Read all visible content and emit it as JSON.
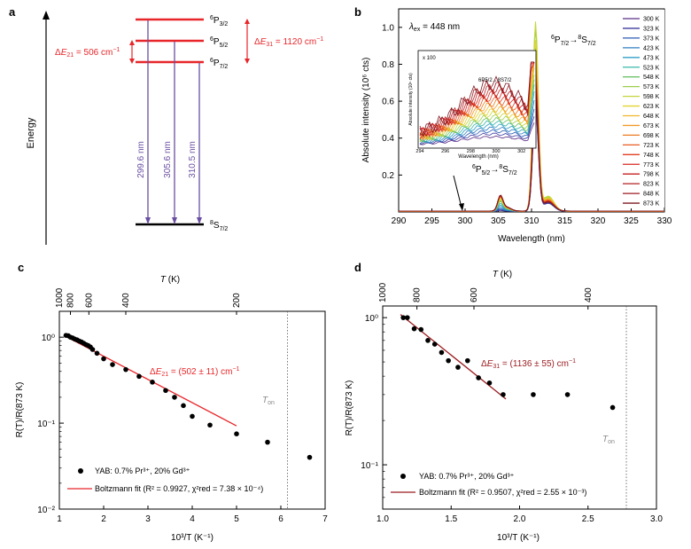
{
  "panels": {
    "a": {
      "label": "a",
      "energy_label": "Energy",
      "levels": [
        {
          "name": "P32",
          "sym": "6P3/2"
        },
        {
          "name": "P52",
          "sym": "6P5/2"
        },
        {
          "name": "P72",
          "sym": "6P7/2"
        },
        {
          "name": "S72",
          "sym": "8S7/2"
        }
      ],
      "dE21_text": "ΔE21 = 506 cm⁻¹",
      "dE31_text": "ΔE31 = 1120 cm⁻¹",
      "transitions": [
        "299.6 nm",
        "305.6 nm",
        "310.5 nm"
      ],
      "color_levels": "#e8262a",
      "color_transitions": "#6a4ea3"
    },
    "b": {
      "label": "b",
      "excitation": "λex = 448 nm",
      "main_transition": "6P7/2→8S7/2",
      "second_transition": "6P5/2→8S7/2",
      "ylabel": "Absolute intensity (10⁶ cts)",
      "xlabel": "Wavelength (nm)",
      "x_ticks": [
        "290",
        "295",
        "300",
        "305",
        "310",
        "315",
        "320",
        "325",
        "330"
      ],
      "y_ticks": [
        "0.2",
        "0.4",
        "0.6",
        "0.8",
        "1.0"
      ],
      "inset_scale": "x 100",
      "inset_xlabel": "Wavelength (nm)",
      "inset_ylabel": "Absolute intensity (10⁶ cts)",
      "inset_transition": "6P5/2→8S7/2",
      "inset_x_ticks": [
        "294",
        "296",
        "298",
        "300",
        "302"
      ]
    },
    "c": {
      "label": "c",
      "top_axis_label": "T (K)",
      "top_ticks": [
        "1000",
        "800",
        "600",
        "400",
        "200"
      ],
      "ylabel": "R(T)/R(873 K)",
      "xlabel": "10³/T (K⁻¹)",
      "x_ticks": [
        "1",
        "2",
        "3",
        "4",
        "5",
        "6",
        "7"
      ],
      "y_ticks": [
        "10⁰",
        "10⁻¹",
        "10⁻²"
      ],
      "fit_text": "ΔE21 = (502 ± 11) cm⁻¹",
      "ton_label": "Ton",
      "legend_points": "YAB: 0.7% Pr³⁺, 20% Gd³⁺",
      "legend_fit": "Boltzmann fit (R² = 0.9927, χ²red = 7.38 × 10⁻⁴)"
    },
    "d": {
      "label": "d",
      "top_axis_label": "T (K)",
      "top_ticks": [
        "1000",
        "800",
        "600",
        "400"
      ],
      "ylabel": "R(T)/R(873 K)",
      "xlabel": "10³/T (K⁻¹)",
      "x_ticks": [
        "1.0",
        "1.5",
        "2.0",
        "2.5",
        "3.0"
      ],
      "y_ticks": [
        "10⁰",
        "10⁻¹"
      ],
      "fit_text": "ΔE31 = (1136 ± 55) cm⁻¹",
      "ton_label": "Ton",
      "legend_points": "YAB: 0.7% Pr³⁺, 20% Gd³⁺",
      "legend_fit": "Boltzmann fit (R² = 0.9507, χ²red = 2.55 × 10⁻³)"
    }
  },
  "chart_data": [
    {
      "type": "line",
      "panel": "b",
      "xlabel": "Wavelength (nm)",
      "ylabel": "Absolute intensity (10⁶ cts)",
      "xlim": [
        290,
        330
      ],
      "ylim": [
        0,
        1.1
      ],
      "legend_position": "right",
      "series": [
        {
          "name": "300 K",
          "color": "#5b2d86",
          "peak310": 0.55,
          "peak305": 0.005
        },
        {
          "name": "323 K",
          "color": "#3d3aa0",
          "peak310": 0.56,
          "peak305": 0.007
        },
        {
          "name": "373 K",
          "color": "#2a5bb5",
          "peak310": 0.6,
          "peak305": 0.012
        },
        {
          "name": "423 K",
          "color": "#2e7fc2",
          "peak310": 0.65,
          "peak305": 0.02
        },
        {
          "name": "473 K",
          "color": "#2fa0c8",
          "peak310": 0.72,
          "peak305": 0.03
        },
        {
          "name": "523 K",
          "color": "#37b7a8",
          "peak310": 0.8,
          "peak305": 0.04
        },
        {
          "name": "548 K",
          "color": "#6cc36b",
          "peak310": 0.88,
          "peak305": 0.05
        },
        {
          "name": "573 K",
          "color": "#9ccf4b",
          "peak310": 0.98,
          "peak305": 0.055
        },
        {
          "name": "598 K",
          "color": "#c5d63b",
          "peak310": 1.02,
          "peak305": 0.06
        },
        {
          "name": "623 K",
          "color": "#e3d32f",
          "peak310": 0.92,
          "peak305": 0.065
        },
        {
          "name": "648 K",
          "color": "#f0b728",
          "peak310": 0.85,
          "peak305": 0.07
        },
        {
          "name": "673 K",
          "color": "#f19a24",
          "peak310": 0.8,
          "peak305": 0.072
        },
        {
          "name": "698 K",
          "color": "#ee7b22",
          "peak310": 0.76,
          "peak305": 0.074
        },
        {
          "name": "723 K",
          "color": "#ea5c22",
          "peak310": 0.72,
          "peak305": 0.075
        },
        {
          "name": "748 K",
          "color": "#e43f22",
          "peak310": 0.7,
          "peak305": 0.076
        },
        {
          "name": "773 K",
          "color": "#d92a22",
          "peak310": 0.68,
          "peak305": 0.077
        },
        {
          "name": "798 K",
          "color": "#c92222",
          "peak310": 0.66,
          "peak305": 0.078
        },
        {
          "name": "823 K",
          "color": "#b51f22",
          "peak310": 0.64,
          "peak305": 0.079
        },
        {
          "name": "848 K",
          "color": "#9e1c22",
          "peak310": 0.62,
          "peak305": 0.08
        },
        {
          "name": "873 K",
          "color": "#7d1820",
          "peak310": 0.6,
          "peak305": 0.081
        }
      ]
    },
    {
      "type": "scatter",
      "panel": "c",
      "xlabel": "10³/T (K⁻¹)",
      "ylabel": "R(T)/R(873 K)",
      "xlim": [
        1,
        7
      ],
      "ylim": [
        0.01,
        2
      ],
      "yscale": "log",
      "points": [
        [
          1.15,
          1.05
        ],
        [
          1.2,
          1.04
        ],
        [
          1.25,
          1.0
        ],
        [
          1.3,
          0.98
        ],
        [
          1.35,
          0.95
        ],
        [
          1.4,
          0.93
        ],
        [
          1.45,
          0.9
        ],
        [
          1.5,
          0.88
        ],
        [
          1.55,
          0.85
        ],
        [
          1.6,
          0.82
        ],
        [
          1.65,
          0.8
        ],
        [
          1.7,
          0.77
        ],
        [
          1.75,
          0.72
        ],
        [
          1.85,
          0.65
        ],
        [
          2.0,
          0.56
        ],
        [
          2.2,
          0.48
        ],
        [
          2.5,
          0.42
        ],
        [
          2.8,
          0.35
        ],
        [
          3.1,
          0.3
        ],
        [
          3.4,
          0.24
        ],
        [
          3.6,
          0.2
        ],
        [
          3.8,
          0.16
        ],
        [
          4.0,
          0.12
        ],
        [
          4.4,
          0.095
        ],
        [
          5.0,
          0.075
        ],
        [
          5.7,
          0.06
        ],
        [
          6.65,
          0.04
        ]
      ],
      "fit_line": [
        [
          1.1,
          1.05
        ],
        [
          5.0,
          0.093
        ]
      ],
      "ton_x": 6.15
    },
    {
      "type": "scatter",
      "panel": "d",
      "xlabel": "10³/T (K⁻¹)",
      "ylabel": "R(T)/R(873 K)",
      "xlim": [
        1.0,
        3.0
      ],
      "ylim": [
        0.05,
        1.2
      ],
      "yscale": "log",
      "points": [
        [
          1.15,
          1.0
        ],
        [
          1.18,
          1.0
        ],
        [
          1.23,
          0.84
        ],
        [
          1.28,
          0.83
        ],
        [
          1.33,
          0.7
        ],
        [
          1.38,
          0.66
        ],
        [
          1.43,
          0.58
        ],
        [
          1.48,
          0.51
        ],
        [
          1.55,
          0.46
        ],
        [
          1.62,
          0.51
        ],
        [
          1.7,
          0.39
        ],
        [
          1.78,
          0.36
        ],
        [
          1.88,
          0.3
        ],
        [
          2.1,
          0.3
        ],
        [
          2.35,
          0.3
        ],
        [
          2.68,
          0.245
        ]
      ],
      "fit_line": [
        [
          1.13,
          1.05
        ],
        [
          1.9,
          0.28
        ]
      ],
      "ton_x": 2.78
    }
  ]
}
